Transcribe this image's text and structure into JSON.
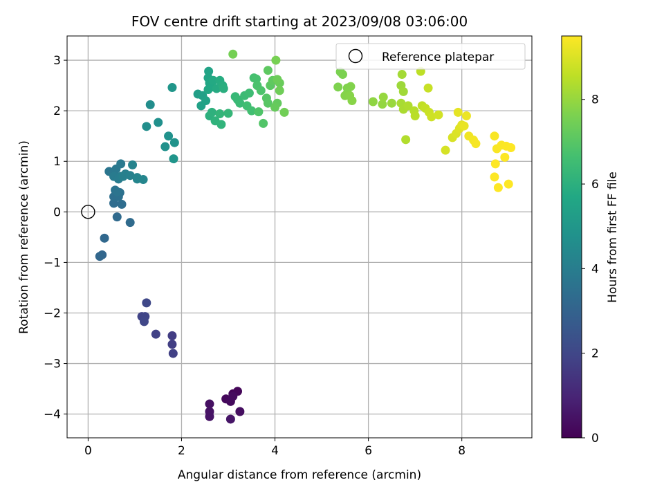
{
  "chart_data": {
    "type": "scatter",
    "title": "FOV centre drift starting at 2023/09/08 03:06:00",
    "xlabel": "Angular distance from reference (arcmin)",
    "ylabel": "Rotation from reference (arcmin)",
    "xlim": [
      -0.45,
      9.5
    ],
    "ylim": [
      -4.47,
      3.48
    ],
    "xticks": [
      0,
      2,
      4,
      6,
      8
    ],
    "yticks": [
      -4,
      -3,
      -2,
      -1,
      0,
      1,
      2,
      3
    ],
    "grid": true,
    "legend": {
      "placement": "top-right",
      "entries": [
        "Reference platepar"
      ]
    },
    "reference": {
      "x": 0,
      "y": 0,
      "label": "Reference platepar"
    },
    "colorbar": {
      "label": "Hours from first FF file",
      "colormap": "viridis",
      "range": [
        0,
        9.5
      ],
      "ticks": [
        0,
        2,
        4,
        6,
        8
      ]
    },
    "points": [
      [
        3.1,
        -3.6,
        0.1
      ],
      [
        3.2,
        -3.55,
        0.15
      ],
      [
        2.95,
        -3.7,
        0.2
      ],
      [
        3.05,
        -3.75,
        0.25
      ],
      [
        3.1,
        -3.65,
        0.3
      ],
      [
        3.25,
        -3.95,
        0.35
      ],
      [
        2.6,
        -3.8,
        0.4
      ],
      [
        2.6,
        -3.95,
        0.45
      ],
      [
        2.6,
        -4.05,
        0.5
      ],
      [
        3.05,
        -4.1,
        0.55
      ],
      [
        1.8,
        -2.45,
        1.7
      ],
      [
        1.8,
        -2.62,
        1.75
      ],
      [
        1.82,
        -2.8,
        1.8
      ],
      [
        1.45,
        -2.42,
        1.85
      ],
      [
        1.15,
        -2.07,
        1.9
      ],
      [
        1.22,
        -2.07,
        1.95
      ],
      [
        1.2,
        -2.17,
        2.0
      ],
      [
        1.25,
        -1.8,
        2.05
      ],
      [
        0.3,
        -0.85,
        3.1
      ],
      [
        0.25,
        -0.88,
        3.15
      ],
      [
        0.35,
        -0.52,
        3.2
      ],
      [
        0.62,
        -0.1,
        3.25
      ],
      [
        0.9,
        -0.21,
        3.3
      ],
      [
        0.55,
        0.17,
        3.35
      ],
      [
        0.72,
        0.15,
        3.4
      ],
      [
        0.55,
        0.3,
        3.45
      ],
      [
        0.65,
        0.3,
        3.5
      ],
      [
        0.68,
        0.38,
        3.55
      ],
      [
        0.58,
        0.43,
        3.6
      ],
      [
        0.62,
        0.4,
        3.65
      ],
      [
        0.45,
        0.8,
        3.7
      ],
      [
        0.55,
        0.78,
        3.75
      ],
      [
        0.6,
        0.85,
        3.8
      ],
      [
        0.7,
        0.95,
        3.85
      ],
      [
        0.55,
        0.7,
        3.9
      ],
      [
        0.65,
        0.65,
        3.95
      ],
      [
        0.7,
        0.7,
        4.0
      ],
      [
        0.8,
        0.75,
        4.05
      ],
      [
        0.75,
        0.7,
        4.1
      ],
      [
        0.9,
        0.72,
        4.15
      ],
      [
        0.95,
        0.93,
        4.2
      ],
      [
        1.05,
        0.68,
        4.25
      ],
      [
        1.05,
        0.65,
        4.3
      ],
      [
        1.18,
        0.64,
        4.35
      ],
      [
        1.33,
        2.12,
        4.6
      ],
      [
        1.25,
        1.69,
        4.65
      ],
      [
        1.5,
        1.77,
        4.7
      ],
      [
        1.65,
        1.29,
        4.75
      ],
      [
        1.72,
        1.5,
        4.8
      ],
      [
        1.85,
        1.37,
        4.85
      ],
      [
        1.83,
        1.05,
        4.9
      ],
      [
        1.8,
        2.46,
        4.95
      ],
      [
        2.35,
        2.33,
        5.3
      ],
      [
        2.45,
        2.3,
        5.35
      ],
      [
        2.42,
        2.1,
        5.4
      ],
      [
        2.52,
        2.2,
        5.45
      ],
      [
        2.58,
        2.78,
        5.5
      ],
      [
        2.57,
        2.65,
        5.55
      ],
      [
        2.6,
        2.55,
        5.6
      ],
      [
        2.57,
        2.42,
        5.65
      ],
      [
        2.65,
        2.47,
        5.7
      ],
      [
        2.68,
        2.6,
        5.75
      ],
      [
        2.75,
        2.44,
        5.8
      ],
      [
        2.82,
        2.6,
        5.85
      ],
      [
        2.88,
        2.5,
        5.9
      ],
      [
        2.9,
        2.44,
        5.95
      ],
      [
        2.6,
        1.9,
        6.0
      ],
      [
        2.65,
        1.97,
        6.05
      ],
      [
        2.72,
        1.8,
        6.1
      ],
      [
        2.85,
        1.73,
        6.15
      ],
      [
        2.82,
        1.94,
        6.2
      ],
      [
        3.0,
        1.95,
        6.25
      ],
      [
        3.15,
        2.28,
        6.3
      ],
      [
        3.2,
        2.22,
        6.35
      ],
      [
        3.25,
        2.15,
        6.4
      ],
      [
        3.35,
        2.3,
        6.45
      ],
      [
        3.45,
        2.35,
        6.5
      ],
      [
        3.4,
        2.1,
        6.55
      ],
      [
        3.5,
        2.0,
        6.6
      ],
      [
        3.55,
        2.65,
        6.65
      ],
      [
        3.6,
        2.63,
        6.7
      ],
      [
        3.62,
        2.5,
        6.75
      ],
      [
        3.7,
        2.4,
        6.8
      ],
      [
        3.65,
        1.98,
        6.85
      ],
      [
        3.75,
        1.75,
        6.9
      ],
      [
        3.82,
        2.25,
        6.95
      ],
      [
        3.85,
        2.15,
        7.0
      ],
      [
        3.9,
        2.5,
        7.05
      ],
      [
        3.85,
        2.8,
        7.1
      ],
      [
        3.95,
        2.6,
        7.15
      ],
      [
        4.05,
        2.15,
        7.2
      ],
      [
        4.0,
        2.07,
        7.25
      ],
      [
        4.1,
        2.55,
        7.3
      ],
      [
        4.05,
        2.62,
        7.35
      ],
      [
        4.1,
        2.4,
        7.4
      ],
      [
        4.2,
        1.97,
        7.45
      ],
      [
        3.1,
        3.12,
        7.5
      ],
      [
        4.02,
        3.0,
        7.55
      ],
      [
        5.4,
        2.77,
        7.6
      ],
      [
        5.45,
        2.72,
        7.62
      ],
      [
        5.35,
        2.47,
        7.65
      ],
      [
        5.55,
        2.45,
        7.68
      ],
      [
        5.62,
        2.48,
        7.7
      ],
      [
        5.55,
        2.35,
        7.72
      ],
      [
        5.5,
        2.3,
        7.75
      ],
      [
        5.6,
        2.3,
        7.78
      ],
      [
        5.65,
        2.2,
        7.8
      ],
      [
        6.1,
        2.18,
        7.9
      ],
      [
        6.3,
        2.13,
        7.95
      ],
      [
        6.32,
        2.27,
        8.0
      ],
      [
        6.5,
        2.15,
        8.05
      ],
      [
        6.7,
        2.5,
        8.1
      ],
      [
        6.75,
        2.38,
        8.15
      ],
      [
        6.72,
        2.72,
        8.2
      ],
      [
        6.7,
        2.15,
        8.25
      ],
      [
        6.75,
        2.03,
        8.3
      ],
      [
        6.85,
        2.1,
        8.35
      ],
      [
        6.8,
        1.43,
        8.4
      ],
      [
        6.98,
        2.0,
        8.45
      ],
      [
        7.0,
        1.9,
        8.5
      ],
      [
        7.12,
        2.78,
        8.55
      ],
      [
        7.15,
        2.1,
        8.6
      ],
      [
        7.22,
        2.05,
        8.65
      ],
      [
        7.28,
        2.45,
        8.7
      ],
      [
        7.3,
        1.97,
        8.75
      ],
      [
        7.35,
        1.88,
        8.8
      ],
      [
        7.5,
        1.92,
        8.85
      ],
      [
        7.65,
        1.22,
        8.9
      ],
      [
        7.8,
        1.47,
        8.95
      ],
      [
        7.88,
        1.55,
        9.0
      ],
      [
        7.95,
        1.65,
        9.05
      ],
      [
        8.0,
        1.72,
        9.1
      ],
      [
        7.92,
        1.97,
        9.15
      ],
      [
        8.05,
        1.7,
        9.2
      ],
      [
        8.1,
        1.9,
        9.25
      ],
      [
        8.15,
        1.5,
        9.3
      ],
      [
        8.25,
        1.42,
        9.35
      ],
      [
        8.3,
        1.35,
        9.4
      ],
      [
        8.7,
        1.5,
        9.42
      ],
      [
        8.75,
        1.25,
        9.44
      ],
      [
        8.85,
        1.32,
        9.46
      ],
      [
        8.95,
        1.3,
        9.48
      ],
      [
        9.05,
        1.27,
        9.5
      ],
      [
        8.92,
        1.08,
        9.52
      ],
      [
        8.72,
        0.95,
        9.54
      ],
      [
        8.7,
        0.69,
        9.56
      ],
      [
        8.78,
        0.48,
        9.58
      ],
      [
        9.0,
        0.55,
        9.6
      ]
    ]
  }
}
